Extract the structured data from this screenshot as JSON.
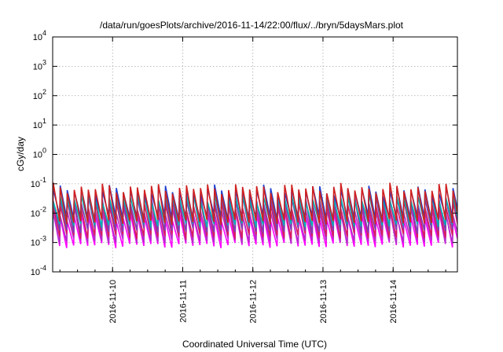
{
  "chart_data": {
    "type": "line",
    "title": "/data/run/goesPlots/archive/2016-11-14/22:00/flux/../bryn/5daysMars.plot",
    "xlabel": "Coordinated Universal Time (UTC)",
    "ylabel": "cGy/day",
    "yscale": "log",
    "ylim": [
      "1e-4",
      "1e4"
    ],
    "xlim": [
      "2016-11-09 03:30",
      "2016-11-14 22:00"
    ],
    "grid": true,
    "y_ticks": [
      {
        "base": "10",
        "exp": "-4",
        "value": 0.0001
      },
      {
        "base": "10",
        "exp": "-3",
        "value": 0.001
      },
      {
        "base": "10",
        "exp": "-2",
        "value": 0.01
      },
      {
        "base": "10",
        "exp": "-1",
        "value": 0.1
      },
      {
        "base": "10",
        "exp": "0",
        "value": 1
      },
      {
        "base": "10",
        "exp": "1",
        "value": 10
      },
      {
        "base": "10",
        "exp": "2",
        "value": 100
      },
      {
        "base": "10",
        "exp": "3",
        "value": 1000
      },
      {
        "base": "10",
        "exp": "4",
        "value": 10000
      }
    ],
    "x_ticks": [
      "2016-11-10",
      "2016-11-11",
      "2016-11-12",
      "2016-11-13",
      "2016-11-14"
    ],
    "series": [
      {
        "color": "#ff00ff",
        "cycle_hours": 2.4,
        "peak": 0.008,
        "trough": 0.0008
      },
      {
        "color": "#b030c8",
        "cycle_hours": 2.4,
        "peak": 0.012,
        "trough": 0.0011
      },
      {
        "color": "#d81b60",
        "cycle_hours": 2.4,
        "peak": 0.02,
        "trough": 0.0016
      },
      {
        "color": "#7b3fb8",
        "cycle_hours": 2.4,
        "peak": 0.03,
        "trough": 0.0025
      },
      {
        "color": "#00b3b3",
        "cycle_hours": 2.4,
        "peak": 0.035,
        "trough": 0.004
      },
      {
        "color": "#2040d0",
        "cycle_hours": 2.4,
        "peak": 0.06,
        "trough": 0.007
      },
      {
        "color": "#d02020",
        "cycle_hours": 2.4,
        "peak": 0.07,
        "trough": 0.005
      }
    ]
  }
}
